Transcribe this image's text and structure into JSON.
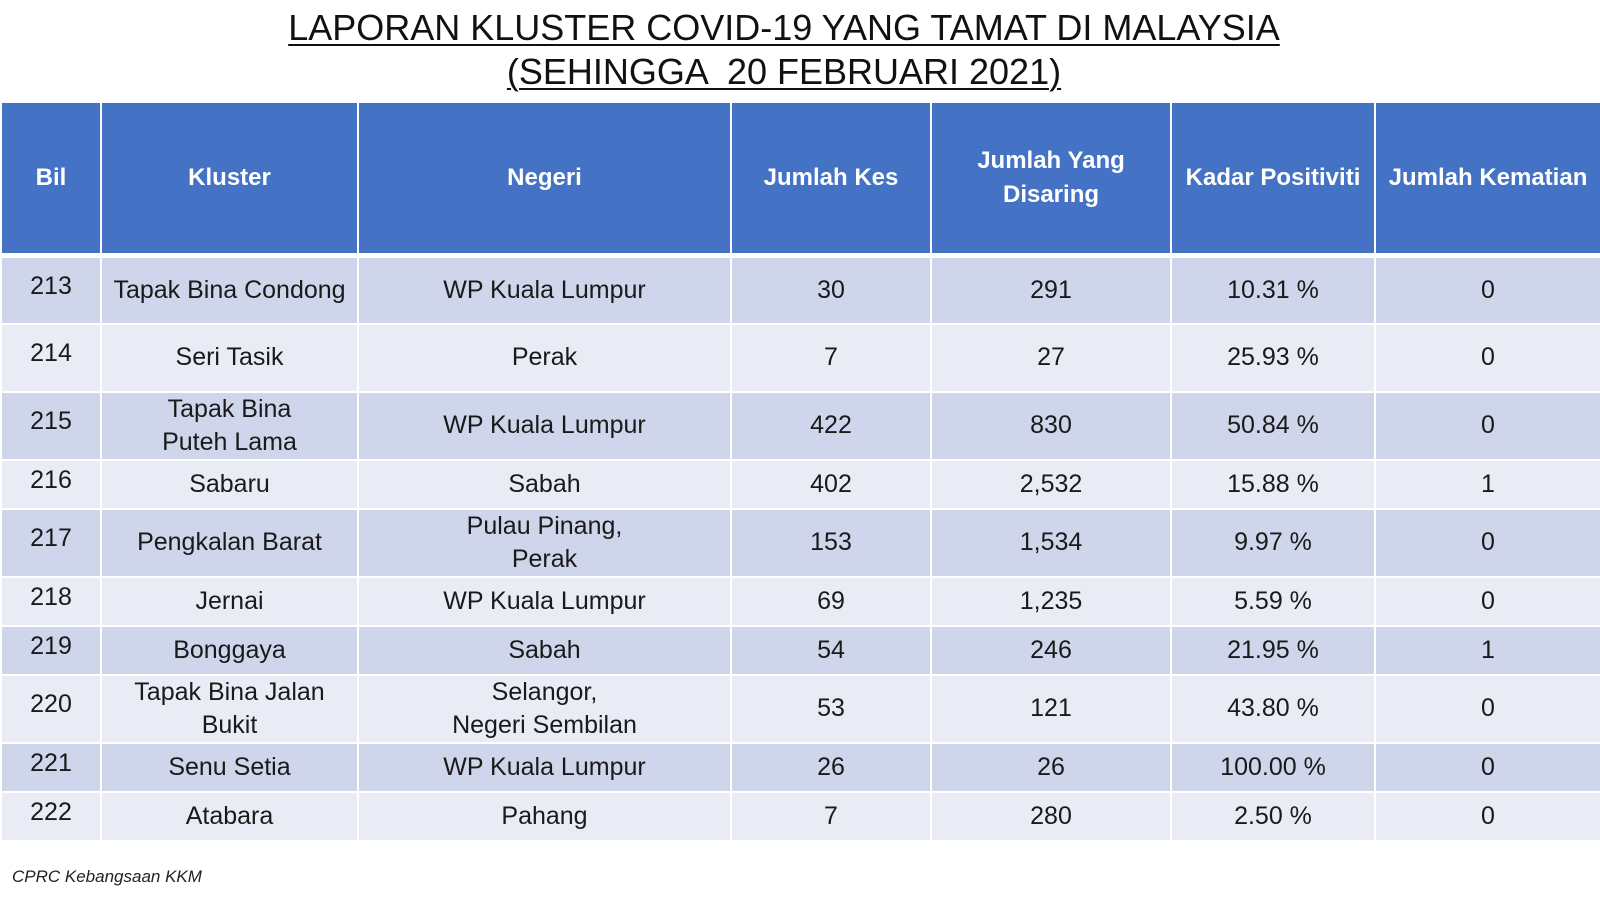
{
  "title": {
    "line1": "LAPORAN KLUSTER COVID-19 YANG TAMAT DI MALAYSIA",
    "line2": "(SEHINGGA  20 FEBRUARI 2021)"
  },
  "table": {
    "headers": {
      "bil": "Bil",
      "kluster": "Kluster",
      "negeri": "Negeri",
      "jumlah_kes": "Jumlah Kes",
      "jumlah_disaring_line1": "Jumlah Yang",
      "jumlah_disaring_line2": "Disaring",
      "kadar_positiviti": "Kadar Positiviti",
      "jumlah_kematian": "Jumlah Kematian"
    },
    "rows": [
      {
        "bil": "213",
        "kluster_1": "Tapak Bina Condong",
        "kluster_2": "",
        "negeri_1": "WP Kuala Lumpur",
        "negeri_2": "",
        "kes": "30",
        "disaring": "291",
        "positiviti": "10.31 %",
        "kematian": "0"
      },
      {
        "bil": "214",
        "kluster_1": "Seri Tasik",
        "kluster_2": "",
        "negeri_1": "Perak",
        "negeri_2": "",
        "kes": "7",
        "disaring": "27",
        "positiviti": "25.93 %",
        "kematian": "0"
      },
      {
        "bil": "215",
        "kluster_1": "Tapak Bina",
        "kluster_2": "Puteh Lama",
        "negeri_1": "WP Kuala Lumpur",
        "negeri_2": "",
        "kes": "422",
        "disaring": "830",
        "positiviti": "50.84 %",
        "kematian": "0"
      },
      {
        "bil": "216",
        "kluster_1": "Sabaru",
        "kluster_2": "",
        "negeri_1": "Sabah",
        "negeri_2": "",
        "kes": "402",
        "disaring": "2,532",
        "positiviti": "15.88 %",
        "kematian": "1"
      },
      {
        "bil": "217",
        "kluster_1": "Pengkalan Barat",
        "kluster_2": "",
        "negeri_1": "Pulau Pinang,",
        "negeri_2": "Perak",
        "kes": "153",
        "disaring": "1,534",
        "positiviti": "9.97 %",
        "kematian": "0"
      },
      {
        "bil": "218",
        "kluster_1": "Jernai",
        "kluster_2": "",
        "negeri_1": "WP Kuala Lumpur",
        "negeri_2": "",
        "kes": "69",
        "disaring": "1,235",
        "positiviti": "5.59 %",
        "kematian": "0"
      },
      {
        "bil": "219",
        "kluster_1": "Bonggaya",
        "kluster_2": "",
        "negeri_1": "Sabah",
        "negeri_2": "",
        "kes": "54",
        "disaring": "246",
        "positiviti": "21.95 %",
        "kematian": "1"
      },
      {
        "bil": "220",
        "kluster_1": "Tapak Bina Jalan",
        "kluster_2": "Bukit",
        "negeri_1": "Selangor,",
        "negeri_2": "Negeri Sembilan",
        "kes": "53",
        "disaring": "121",
        "positiviti": "43.80 %",
        "kematian": "0"
      },
      {
        "bil": "221",
        "kluster_1": "Senu Setia",
        "kluster_2": "",
        "negeri_1": "WP Kuala Lumpur",
        "negeri_2": "",
        "kes": "26",
        "disaring": "26",
        "positiviti": "100.00 %",
        "kematian": "0"
      },
      {
        "bil": "222",
        "kluster_1": "Atabara",
        "kluster_2": "",
        "negeri_1": "Pahang",
        "negeri_2": "",
        "kes": "7",
        "disaring": "280",
        "positiviti": "2.50 %",
        "kematian": "0"
      }
    ]
  },
  "footer": {
    "source": "CPRC Kebangsaan KKM"
  },
  "colors": {
    "header_bg": "#4472c4",
    "row_dark": "#cfd5ea",
    "row_light": "#e9ebf5"
  }
}
